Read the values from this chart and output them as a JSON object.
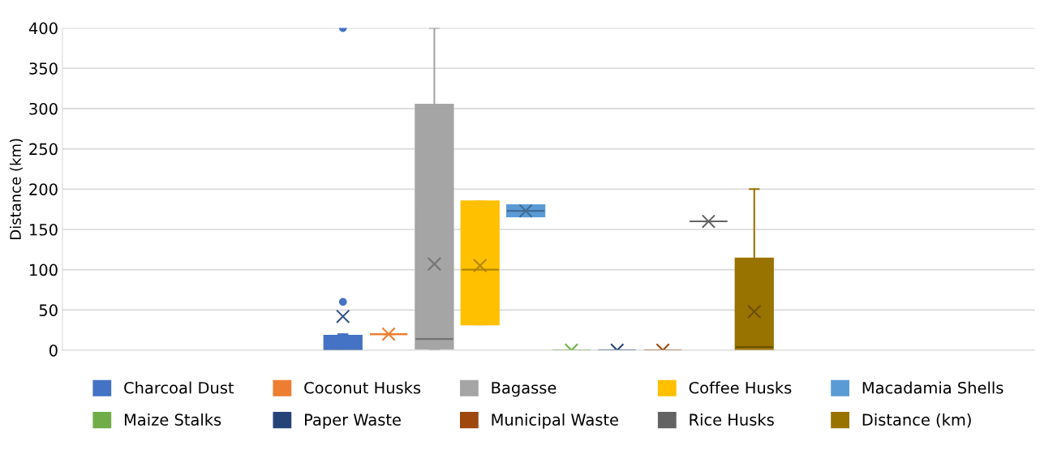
{
  "chart_data": {
    "type": "box",
    "ylabel": "Distance (km)",
    "categories": [
      null
    ],
    "ylim": [
      0,
      400
    ],
    "yticks": [
      0,
      50,
      100,
      150,
      200,
      250,
      300,
      350,
      400
    ],
    "grid": "y",
    "legend": "bottom",
    "marker": "cross",
    "tick_labels": "y",
    "series": [
      {
        "name": "Charcoal Dust",
        "color": "#4472c4",
        "boxes": [
          {
            "low": 0,
            "q1": 0,
            "median": 0,
            "q3": 18,
            "high": 20,
            "mean": 42,
            "outliers": [
              60,
              400
            ]
          }
        ]
      },
      {
        "name": "Coconut Husks",
        "color": "#ed7d31",
        "boxes": [
          {
            "low": 20,
            "q1": 20,
            "median": 20,
            "q3": 20,
            "high": 20,
            "mean": 20
          }
        ]
      },
      {
        "name": "Bagasse",
        "color": "#a5a5a5",
        "boxes": [
          {
            "low": 0,
            "q1": 2,
            "median": 14,
            "q3": 305,
            "high": 400,
            "mean": 107
          }
        ]
      },
      {
        "name": "Coffee Husks",
        "color": "#ffc000",
        "boxes": [
          {
            "low": 32,
            "q1": 32,
            "median": 100,
            "q3": 185,
            "high": 185,
            "mean": 105
          }
        ]
      },
      {
        "name": "Macadamia Shells",
        "color": "#5b9bd5",
        "boxes": [
          {
            "low": 166,
            "q1": 166,
            "median": 173,
            "q3": 180,
            "high": 180,
            "mean": 173
          }
        ]
      },
      {
        "name": "Maize Stalks",
        "color": "#70ad47",
        "boxes": [
          {
            "low": 0,
            "q1": 0,
            "median": 0,
            "q3": 0,
            "high": 0,
            "mean": 0
          }
        ]
      },
      {
        "name": "Paper Waste",
        "color": "#264478",
        "boxes": [
          {
            "low": 0,
            "q1": 0,
            "median": 0,
            "q3": 0,
            "high": 0,
            "mean": 0
          }
        ]
      },
      {
        "name": "Municipal Waste",
        "color": "#9e480e",
        "boxes": [
          {
            "low": 0,
            "q1": 0,
            "median": 0,
            "q3": 0,
            "high": 0,
            "mean": 0
          }
        ]
      },
      {
        "name": "Rice Husks",
        "color": "#636363",
        "boxes": [
          {
            "low": 160,
            "q1": 160,
            "median": 160,
            "q3": 160,
            "high": 160,
            "mean": 160
          }
        ]
      },
      {
        "name": "Distance (km)",
        "color": "#997300",
        "boxes": [
          {
            "low": 0,
            "q1": 0,
            "median": 4,
            "q3": 114,
            "high": 200,
            "mean": 48
          }
        ]
      }
    ]
  }
}
